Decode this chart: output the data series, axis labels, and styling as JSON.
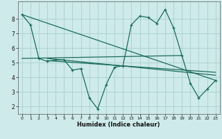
{
  "xlabel": "Humidex (Indice chaleur)",
  "bg_color": "#ceeaea",
  "grid_color": "#aacfcf",
  "line_color": "#1a6b5a",
  "xlim": [
    -0.5,
    23.5
  ],
  "ylim": [
    1.5,
    9.2
  ],
  "yticks": [
    2,
    3,
    4,
    5,
    6,
    7,
    8
  ],
  "xticks": [
    0,
    1,
    2,
    3,
    4,
    5,
    6,
    7,
    8,
    9,
    10,
    11,
    12,
    13,
    14,
    15,
    16,
    17,
    18,
    19,
    20,
    21,
    22,
    23
  ],
  "line1_x": [
    0,
    1,
    2,
    3,
    4,
    5,
    6,
    7,
    8,
    9,
    10,
    11,
    12,
    13,
    14,
    15,
    16,
    17,
    18,
    19,
    20,
    21,
    22,
    23
  ],
  "line1_y": [
    8.3,
    7.6,
    5.3,
    5.1,
    5.2,
    5.2,
    4.5,
    4.6,
    2.6,
    1.85,
    3.5,
    4.7,
    4.8,
    7.6,
    8.2,
    8.1,
    7.7,
    8.65,
    7.4,
    5.5,
    3.6,
    2.6,
    3.2,
    3.8
  ],
  "line2_x": [
    0,
    19
  ],
  "line2_y": [
    5.3,
    5.5
  ],
  "line3_x": [
    3,
    23
  ],
  "line3_y": [
    5.3,
    4.15
  ],
  "line4_x": [
    3,
    23
  ],
  "line4_y": [
    5.15,
    4.35
  ],
  "line5_x": [
    0,
    23
  ],
  "line5_y": [
    8.3,
    3.8
  ]
}
